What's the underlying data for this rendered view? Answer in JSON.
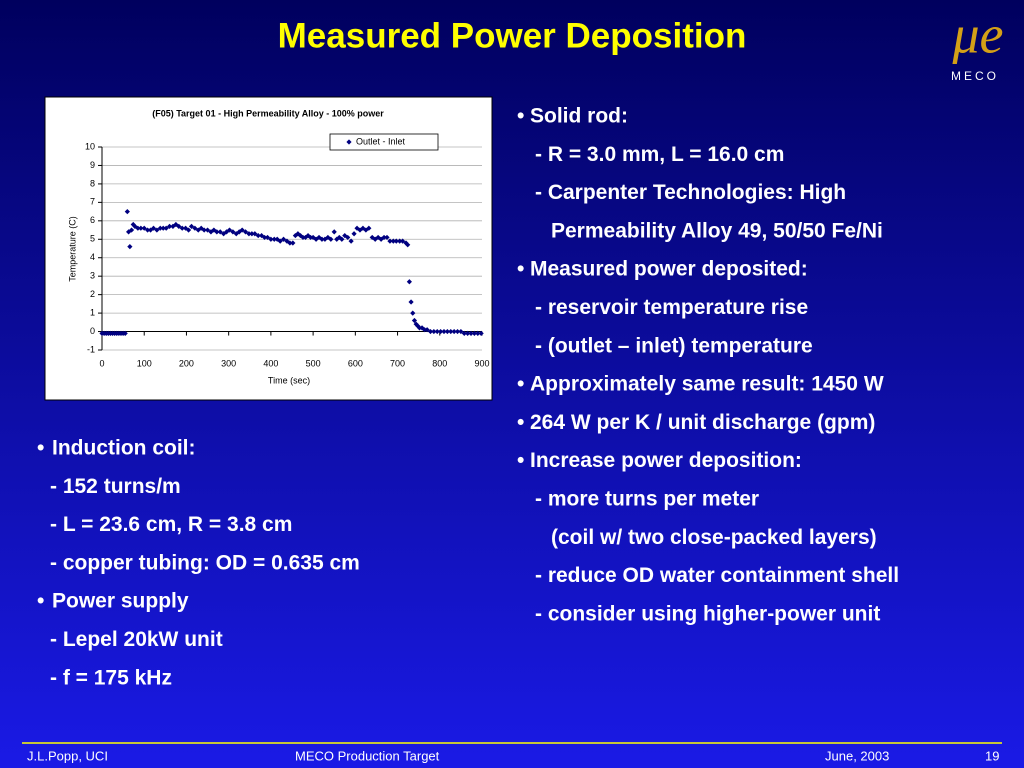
{
  "title": "Measured Power Deposition",
  "logo": {
    "symbol": "μe",
    "name": "MECO"
  },
  "bullet": "•",
  "right_items": [
    {
      "text": "Solid rod:",
      "level": 0
    },
    {
      "text": "- R = 3.0 mm, L = 16.0 cm",
      "level": 1
    },
    {
      "text": "- Carpenter Technologies: High",
      "level": 1
    },
    {
      "text": "Permeability Alloy 49, 50/50 Fe/Ni",
      "level": 2
    },
    {
      "text": "Measured power deposited:",
      "level": 0
    },
    {
      "text": "- reservoir temperature rise",
      "level": 1
    },
    {
      "text": "- (outlet – inlet) temperature",
      "level": 1
    },
    {
      "text": "Approximately same result: 1450 W",
      "level": 0
    },
    {
      "text": "264 W per K / unit discharge (gpm)",
      "level": 0
    },
    {
      "text": "Increase power deposition:",
      "level": 0
    },
    {
      "text": "- more turns per meter",
      "level": 1
    },
    {
      "text": "(coil w/ two close-packed layers)",
      "level": 2
    },
    {
      "text": "- reduce OD water containment shell",
      "level": 1
    },
    {
      "text": "- consider using higher-power unit",
      "level": 1
    }
  ],
  "left_items": [
    {
      "text": "Induction coil:",
      "level": 0
    },
    {
      "text": "- 152 turns/m",
      "level": 1
    },
    {
      "text": "- L = 23.6 cm, R = 3.8 cm",
      "level": 1
    },
    {
      "text": "- copper tubing: OD = 0.635 cm",
      "level": 1
    },
    {
      "text": "Power supply",
      "level": 0
    },
    {
      "text": "- Lepel 20kW unit",
      "level": 1
    },
    {
      "text": "- f = 175 kHz",
      "level": 1
    }
  ],
  "footer": {
    "author": "J.L.Popp, UCI",
    "center": "MECO Production Target",
    "date": "June, 2003",
    "page": "19"
  },
  "chart_data": {
    "type": "scatter",
    "title": "(F05) Target 01 - High Permeability Alloy - 100% power",
    "x_label": "Time (sec)",
    "y_label": "Temperature (C)",
    "xlim": [
      0,
      900
    ],
    "xticks": [
      0,
      100,
      200,
      300,
      400,
      500,
      600,
      700,
      800,
      900
    ],
    "ylim": [
      -1,
      10
    ],
    "yticks": [
      -1,
      0,
      1,
      2,
      3,
      4,
      5,
      6,
      7,
      8,
      9,
      10
    ],
    "grid": true,
    "legend": "top-right",
    "x": [
      0,
      5,
      10,
      15,
      20,
      25,
      30,
      35,
      40,
      45,
      50,
      55,
      60,
      63,
      66,
      70,
      74,
      78,
      85,
      92,
      100,
      108,
      115,
      122,
      130,
      138,
      145,
      152,
      160,
      168,
      175,
      182,
      190,
      198,
      205,
      212,
      220,
      228,
      235,
      242,
      250,
      258,
      265,
      272,
      280,
      288,
      295,
      302,
      310,
      318,
      325,
      332,
      340,
      348,
      355,
      362,
      370,
      378,
      385,
      392,
      400,
      408,
      415,
      422,
      430,
      438,
      445,
      452,
      458,
      464,
      470,
      476,
      482,
      488,
      494,
      500,
      507,
      514,
      521,
      528,
      535,
      542,
      550,
      556,
      562,
      568,
      575,
      582,
      590,
      597,
      604,
      611,
      618,
      625,
      632,
      640,
      647,
      654,
      661,
      668,
      675,
      682,
      690,
      697,
      705,
      712,
      720,
      724,
      728,
      732,
      736,
      740,
      744,
      748,
      752,
      758,
      764,
      770,
      778,
      786,
      794,
      802,
      810,
      818,
      826,
      834,
      842,
      850,
      858,
      866,
      874,
      882,
      890,
      898
    ],
    "series": [
      {
        "name": "Outlet - Inlet",
        "color": "#000080",
        "values": [
          -0.1,
          -0.1,
          -0.1,
          -0.1,
          -0.1,
          -0.1,
          -0.1,
          -0.1,
          -0.1,
          -0.1,
          -0.1,
          -0.1,
          6.5,
          5.4,
          4.6,
          5.5,
          5.8,
          5.7,
          5.6,
          5.6,
          5.6,
          5.5,
          5.5,
          5.6,
          5.5,
          5.6,
          5.6,
          5.6,
          5.7,
          5.7,
          5.8,
          5.7,
          5.6,
          5.6,
          5.5,
          5.7,
          5.6,
          5.5,
          5.6,
          5.5,
          5.5,
          5.4,
          5.5,
          5.4,
          5.4,
          5.3,
          5.4,
          5.5,
          5.4,
          5.3,
          5.4,
          5.5,
          5.4,
          5.3,
          5.3,
          5.3,
          5.2,
          5.2,
          5.1,
          5.1,
          5,
          5,
          5,
          4.9,
          5,
          4.9,
          4.8,
          4.8,
          5.2,
          5.3,
          5.2,
          5.1,
          5.1,
          5.2,
          5.1,
          5.1,
          5,
          5.1,
          5,
          5,
          5.1,
          5,
          5.4,
          5,
          5.1,
          5,
          5.2,
          5.1,
          4.9,
          5.3,
          5.6,
          5.5,
          5.6,
          5.5,
          5.6,
          5.1,
          5,
          5.1,
          5,
          5.1,
          5.1,
          4.9,
          4.9,
          4.9,
          4.9,
          4.9,
          4.8,
          4.7,
          2.7,
          1.6,
          1,
          0.6,
          0.4,
          0.3,
          0.2,
          0.2,
          0.1,
          0.1,
          0,
          0,
          0,
          0,
          0,
          0,
          0,
          0,
          0,
          0,
          -0.1,
          -0.1,
          -0.1,
          -0.1,
          -0.1,
          -0.1
        ]
      }
    ]
  }
}
